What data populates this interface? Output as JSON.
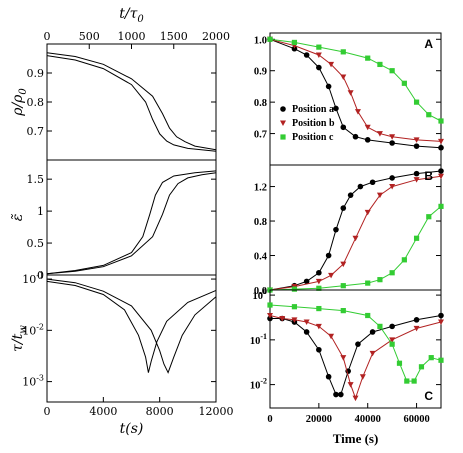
{
  "chart_data": [
    {
      "id": "left",
      "type": "line",
      "top_axis": {
        "label": "t/τ",
        "label_sub": "0",
        "ticks": [
          "0",
          "500",
          "1000",
          "1500",
          "2000"
        ],
        "lim": [
          0,
          2000
        ]
      },
      "bottom_axis": {
        "label": "t(s)",
        "ticks": [
          "0",
          "4000",
          "8000",
          "12000"
        ],
        "lim": [
          0,
          12000
        ]
      },
      "panels": [
        {
          "ylabel": "ρ/ρ",
          "ylabel_sub": "0",
          "ylim": [
            0.6,
            1.0
          ],
          "yticks": [
            {
              "v": 0.7,
              "t": "0.7"
            },
            {
              "v": 0.8,
              "t": "0.8"
            },
            {
              "v": 0.9,
              "t": "0.9"
            }
          ],
          "series": [
            {
              "x": [
                0,
                2000,
                4000,
                6000,
                7000,
                7500,
                8000,
                8500,
                9000,
                10000,
                12000
              ],
              "y": [
                0.96,
                0.945,
                0.915,
                0.86,
                0.8,
                0.74,
                0.69,
                0.665,
                0.652,
                0.64,
                0.63
              ]
            },
            {
              "x": [
                0,
                2000,
                4000,
                6000,
                7500,
                8200,
                8700,
                9200,
                9800,
                10500,
                12000
              ],
              "y": [
                0.97,
                0.957,
                0.93,
                0.88,
                0.82,
                0.76,
                0.71,
                0.68,
                0.663,
                0.648,
                0.635
              ]
            }
          ]
        },
        {
          "ylabel": "ε̃",
          "ylim": [
            0,
            1.8
          ],
          "yticks": [
            {
              "v": 0,
              "t": "0"
            },
            {
              "v": 0.5,
              "t": "0.5"
            },
            {
              "v": 1.0,
              "t": "1"
            },
            {
              "v": 1.5,
              "t": "1.5"
            }
          ],
          "series": [
            {
              "x": [
                0,
                2000,
                4000,
                6000,
                6800,
                7300,
                7700,
                8200,
                9000,
                10500,
                12000
              ],
              "y": [
                0.02,
                0.07,
                0.15,
                0.35,
                0.6,
                0.95,
                1.25,
                1.45,
                1.55,
                1.6,
                1.63
              ]
            },
            {
              "x": [
                0,
                2000,
                4000,
                6000,
                7500,
                8200,
                8700,
                9300,
                10000,
                11000,
                12000
              ],
              "y": [
                0.02,
                0.06,
                0.13,
                0.3,
                0.6,
                0.95,
                1.25,
                1.43,
                1.52,
                1.57,
                1.6
              ]
            }
          ]
        },
        {
          "ylabel": "τ/t",
          "ylabel_sub": "w",
          "log": true,
          "ylim": [
            0.0004,
            0.12
          ],
          "yticks": [
            {
              "v": 0.1,
              "t": "10",
              "sup": "-1"
            },
            {
              "v": 0.01,
              "t": "10",
              "sup": "-2"
            },
            {
              "v": 0.001,
              "t": "10",
              "sup": "-3"
            }
          ],
          "series": [
            {
              "x": [
                0,
                2000,
                4000,
                5500,
                6500,
                7000,
                7200,
                7400,
                7800,
                8500,
                10000,
                12000
              ],
              "y": [
                0.09,
                0.075,
                0.05,
                0.025,
                0.008,
                0.003,
                0.0015,
                0.0025,
                0.006,
                0.015,
                0.035,
                0.06
              ]
            },
            {
              "x": [
                0,
                2000,
                4000,
                6000,
                7400,
                8000,
                8300,
                8600,
                9000,
                9600,
                10500,
                12000
              ],
              "y": [
                0.1,
                0.085,
                0.058,
                0.03,
                0.01,
                0.004,
                0.0022,
                0.0015,
                0.003,
                0.008,
                0.02,
                0.045
              ]
            }
          ]
        }
      ]
    },
    {
      "id": "right",
      "type": "scatter",
      "xlabel": "Time (s)",
      "xticks": [
        "0",
        "20000",
        "40000",
        "60000"
      ],
      "xlim": [
        0,
        70000
      ],
      "legend": {
        "placement": "lower-left",
        "entries": [
          "Position a",
          "Position b",
          "Position c"
        ]
      },
      "colors": [
        "#000000",
        "#b22222",
        "#33cc33"
      ],
      "panels": [
        {
          "letter": "A",
          "ylim": [
            0.6,
            1.02
          ],
          "yticks": [
            {
              "v": 0.7,
              "t": "0.7"
            },
            {
              "v": 0.8,
              "t": "0.8"
            },
            {
              "v": 0.9,
              "t": "0.9"
            },
            {
              "v": 1.0,
              "t": "1.0"
            }
          ],
          "series": [
            {
              "name": "Position a",
              "marker": "circle",
              "x": [
                0,
                10000,
                15000,
                20000,
                24000,
                27000,
                30000,
                35000,
                40000,
                50000,
                60000,
                70000
              ],
              "y": [
                1.0,
                0.97,
                0.95,
                0.91,
                0.85,
                0.78,
                0.72,
                0.69,
                0.68,
                0.67,
                0.66,
                0.655
              ]
            },
            {
              "name": "Position b",
              "marker": "triangle-down",
              "x": [
                0,
                10000,
                20000,
                25000,
                30000,
                33000,
                36000,
                40000,
                45000,
                50000,
                60000,
                70000
              ],
              "y": [
                1.0,
                0.98,
                0.95,
                0.92,
                0.88,
                0.83,
                0.77,
                0.72,
                0.7,
                0.69,
                0.68,
                0.675
              ]
            },
            {
              "name": "Position c",
              "marker": "square",
              "x": [
                0,
                10000,
                20000,
                30000,
                40000,
                45000,
                50000,
                55000,
                60000,
                65000,
                70000
              ],
              "y": [
                1.0,
                0.99,
                0.975,
                0.96,
                0.94,
                0.92,
                0.9,
                0.86,
                0.8,
                0.76,
                0.74
              ]
            }
          ]
        },
        {
          "letter": "B",
          "ylim": [
            0,
            1.45
          ],
          "yticks": [
            {
              "v": 0,
              "t": "0.0"
            },
            {
              "v": 0.4,
              "t": "0.4"
            },
            {
              "v": 0.8,
              "t": "0.8"
            },
            {
              "v": 1.2,
              "t": "1.2"
            }
          ],
          "series": [
            {
              "name": "Position a",
              "marker": "circle",
              "x": [
                0,
                10000,
                15000,
                20000,
                24000,
                27000,
                30000,
                33000,
                37000,
                42000,
                50000,
                60000,
                70000
              ],
              "y": [
                0.0,
                0.05,
                0.1,
                0.2,
                0.4,
                0.7,
                0.95,
                1.1,
                1.2,
                1.25,
                1.3,
                1.35,
                1.38
              ]
            },
            {
              "name": "Position b",
              "marker": "triangle-down",
              "x": [
                0,
                10000,
                20000,
                25000,
                30000,
                35000,
                40000,
                45000,
                50000,
                60000,
                70000
              ],
              "y": [
                0.0,
                0.04,
                0.1,
                0.17,
                0.3,
                0.6,
                0.9,
                1.1,
                1.2,
                1.28,
                1.32
              ]
            },
            {
              "name": "Position c",
              "marker": "square",
              "x": [
                0,
                10000,
                20000,
                30000,
                40000,
                45000,
                50000,
                55000,
                60000,
                65000,
                70000
              ],
              "y": [
                0.0,
                0.01,
                0.02,
                0.05,
                0.08,
                0.12,
                0.2,
                0.35,
                0.6,
                0.85,
                0.97
              ]
            }
          ]
        },
        {
          "letter": "C",
          "log": true,
          "ylim": [
            0.003,
            1.3
          ],
          "yticks": [
            {
              "v": 1,
              "t": "10",
              "sup": "0"
            },
            {
              "v": 0.1,
              "t": "10",
              "sup": "-1"
            },
            {
              "v": 0.01,
              "t": "10",
              "sup": "-2"
            }
          ],
          "series": [
            {
              "name": "Position a",
              "marker": "circle",
              "x": [
                0,
                5000,
                10000,
                15000,
                20000,
                24000,
                27000,
                29000,
                32000,
                36000,
                42000,
                50000,
                60000,
                70000
              ],
              "y": [
                0.3,
                0.3,
                0.25,
                0.15,
                0.06,
                0.015,
                0.006,
                0.006,
                0.02,
                0.08,
                0.15,
                0.2,
                0.28,
                0.35
              ]
            },
            {
              "name": "Position b",
              "marker": "triangle-down",
              "x": [
                0,
                5000,
                10000,
                15000,
                20000,
                25000,
                30000,
                33000,
                35000,
                38000,
                42000,
                50000,
                60000,
                70000
              ],
              "y": [
                0.35,
                0.3,
                0.28,
                0.25,
                0.2,
                0.12,
                0.04,
                0.01,
                0.005,
                0.015,
                0.05,
                0.1,
                0.18,
                0.25
              ]
            },
            {
              "name": "Position c",
              "marker": "square",
              "x": [
                0,
                10000,
                20000,
                30000,
                40000,
                45000,
                50000,
                53000,
                56000,
                59000,
                62000,
                66000,
                70000
              ],
              "y": [
                0.6,
                0.55,
                0.5,
                0.45,
                0.35,
                0.2,
                0.08,
                0.03,
                0.012,
                0.012,
                0.025,
                0.04,
                0.035
              ]
            }
          ]
        }
      ]
    }
  ]
}
